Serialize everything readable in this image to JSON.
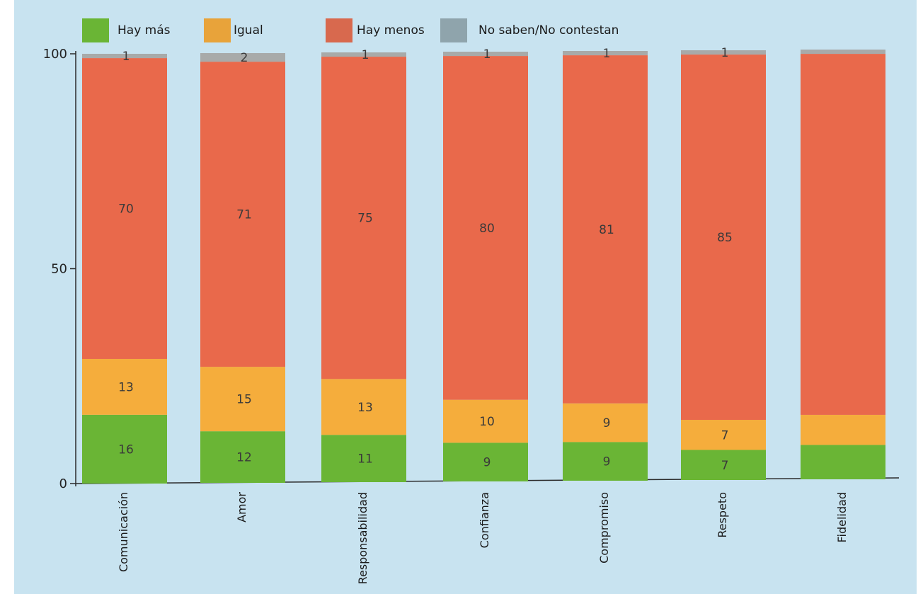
{
  "chart_data": {
    "type": "bar",
    "stacked": true,
    "categories": [
      "Comunicación",
      "Amor",
      "Responsabilidad",
      "Confianza",
      "Compromiso",
      "Respeto",
      "Fidelidad"
    ],
    "series": [
      {
        "name": "Hay más",
        "color": "#6ab535",
        "values": [
          16,
          12,
          11,
          9,
          9,
          7,
          8
        ],
        "labels": [
          "16",
          "12",
          "11",
          "9",
          "9",
          "7",
          ""
        ]
      },
      {
        "name": "Igual",
        "color": "#f5ad3c",
        "values": [
          13,
          15,
          13,
          10,
          9,
          7,
          7
        ],
        "labels": [
          "13",
          "15",
          "13",
          "10",
          "9",
          "7",
          ""
        ]
      },
      {
        "name": "Hay menos",
        "color": "#e9694b",
        "values": [
          70,
          71,
          75,
          80,
          81,
          85,
          84
        ],
        "labels": [
          "70",
          "71",
          "75",
          "80",
          "81",
          "85",
          ""
        ]
      },
      {
        "name": "No saben/No contestan",
        "color": "#a8aaa9",
        "values": [
          1,
          2,
          1,
          1,
          1,
          1,
          1
        ],
        "labels": [
          "1",
          "2",
          "1",
          "1",
          "1",
          "1",
          ""
        ]
      }
    ],
    "legend_colors": [
      "#6ab535",
      "#e8a33a",
      "#d8694e",
      "#8fa4ac"
    ],
    "yticks": [
      "0",
      "50",
      "100"
    ],
    "ylim": [
      0,
      100
    ],
    "legend_position": "top",
    "title": "",
    "xlabel": "",
    "ylabel": ""
  }
}
